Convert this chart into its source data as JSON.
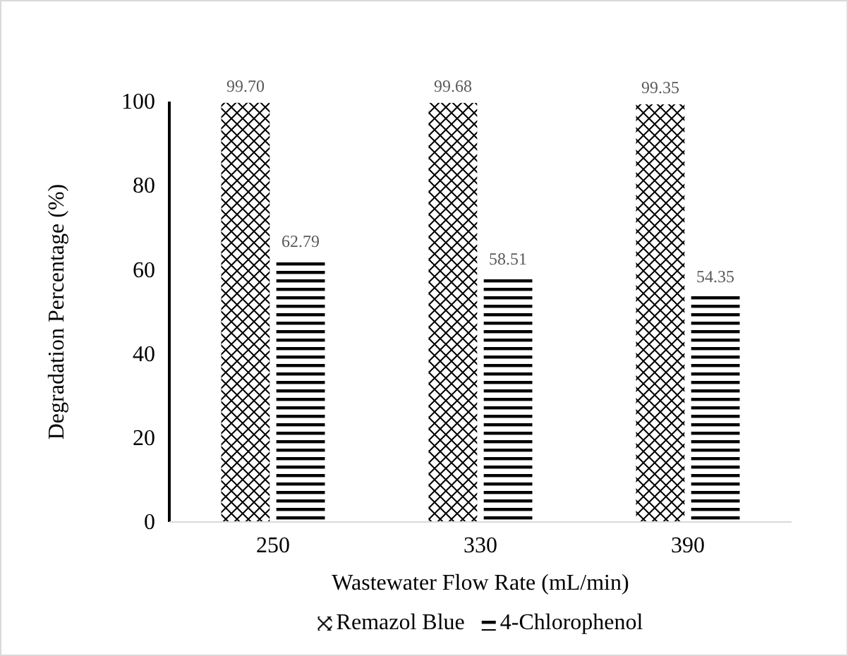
{
  "chart_data": {
    "type": "bar",
    "xlabel": "Wastewater Flow Rate (mL/min)",
    "ylabel": "Degradation Percentage (%)",
    "categories": [
      "250",
      "330",
      "390"
    ],
    "series": [
      {
        "name": "Remazol Blue",
        "color": "#000000",
        "values": [
          99.7,
          99.68,
          99.35
        ],
        "value_labels": [
          "99.70",
          "99.68",
          "99.35"
        ]
      },
      {
        "name": "4-Chlorophenol",
        "color": "#000000",
        "values": [
          62.79,
          58.51,
          54.35
        ],
        "value_labels": [
          "62.79",
          "58.51",
          "54.35"
        ]
      }
    ],
    "ylim": [
      0,
      100
    ],
    "yticks": [
      0,
      20,
      40,
      60,
      80,
      100
    ],
    "legend": "bottom",
    "grid": false
  }
}
